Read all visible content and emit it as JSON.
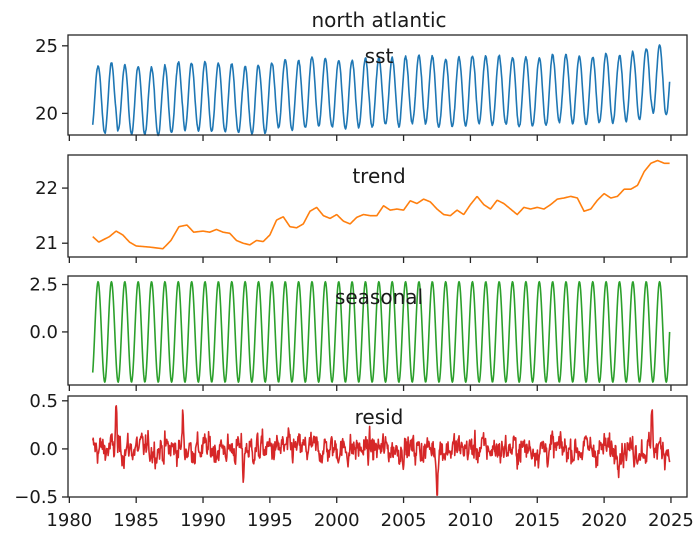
{
  "chart_data": {
    "type": "line",
    "title": "north atlantic",
    "x_ticks": [
      "1980",
      "1985",
      "1990",
      "1995",
      "2000",
      "2005",
      "2010",
      "2015",
      "2020",
      "2025"
    ],
    "xlim": [
      1979.9,
      2026.2
    ],
    "x_start": 1981.75,
    "x_end": 2024.9,
    "panels": [
      {
        "label": "sst",
        "color": "#1f77b4",
        "ylim": [
          18.4,
          25.8
        ],
        "y_ticks": [
          "20",
          "25"
        ],
        "y_tick_values": [
          20,
          25
        ],
        "trend_points": [
          [
            1981.75,
            21.15
          ],
          [
            1985,
            21.1
          ],
          [
            1990,
            21.2
          ],
          [
            1995,
            21.2
          ],
          [
            1998,
            21.55
          ],
          [
            2000,
            21.5
          ],
          [
            2005,
            21.7
          ],
          [
            2010,
            21.8
          ],
          [
            2015,
            21.75
          ],
          [
            2020,
            21.9
          ],
          [
            2022,
            22.1
          ],
          [
            2023.5,
            22.45
          ],
          [
            2024.9,
            22.5
          ]
        ],
        "seasonal_amplitude": 2.45
      },
      {
        "label": "trend",
        "color": "#ff7f0e",
        "ylim": [
          20.75,
          22.6
        ],
        "y_ticks": [
          "21",
          "22"
        ],
        "y_tick_values": [
          21,
          22
        ],
        "values": [
          [
            1981.75,
            21.12
          ],
          [
            1982.2,
            21.02
          ],
          [
            1983.0,
            21.12
          ],
          [
            1983.5,
            21.22
          ],
          [
            1984.0,
            21.15
          ],
          [
            1984.5,
            21.02
          ],
          [
            1985.0,
            20.95
          ],
          [
            1986.0,
            20.93
          ],
          [
            1987.0,
            20.9
          ],
          [
            1987.6,
            21.05
          ],
          [
            1988.2,
            21.3
          ],
          [
            1988.8,
            21.33
          ],
          [
            1989.3,
            21.2
          ],
          [
            1990.0,
            21.22
          ],
          [
            1990.5,
            21.2
          ],
          [
            1991.0,
            21.25
          ],
          [
            1991.5,
            21.2
          ],
          [
            1992.0,
            21.18
          ],
          [
            1992.5,
            21.05
          ],
          [
            1993.0,
            21.0
          ],
          [
            1993.5,
            20.97
          ],
          [
            1994.0,
            21.05
          ],
          [
            1994.5,
            21.03
          ],
          [
            1995.0,
            21.15
          ],
          [
            1995.5,
            21.42
          ],
          [
            1996.0,
            21.48
          ],
          [
            1996.5,
            21.3
          ],
          [
            1997.0,
            21.28
          ],
          [
            1997.5,
            21.35
          ],
          [
            1998.0,
            21.58
          ],
          [
            1998.5,
            21.65
          ],
          [
            1999.0,
            21.5
          ],
          [
            1999.5,
            21.45
          ],
          [
            2000.0,
            21.52
          ],
          [
            2000.5,
            21.4
          ],
          [
            2001.0,
            21.35
          ],
          [
            2001.5,
            21.47
          ],
          [
            2002.0,
            21.52
          ],
          [
            2002.5,
            21.5
          ],
          [
            2003.0,
            21.5
          ],
          [
            2003.5,
            21.68
          ],
          [
            2004.0,
            21.6
          ],
          [
            2004.5,
            21.62
          ],
          [
            2005.0,
            21.6
          ],
          [
            2005.5,
            21.77
          ],
          [
            2006.0,
            21.72
          ],
          [
            2006.5,
            21.8
          ],
          [
            2007.0,
            21.75
          ],
          [
            2007.5,
            21.62
          ],
          [
            2008.0,
            21.52
          ],
          [
            2008.5,
            21.5
          ],
          [
            2009.0,
            21.6
          ],
          [
            2009.5,
            21.52
          ],
          [
            2010.0,
            21.7
          ],
          [
            2010.5,
            21.85
          ],
          [
            2011.0,
            21.7
          ],
          [
            2011.5,
            21.62
          ],
          [
            2012.0,
            21.78
          ],
          [
            2012.5,
            21.72
          ],
          [
            2013.0,
            21.62
          ],
          [
            2013.5,
            21.52
          ],
          [
            2014.0,
            21.65
          ],
          [
            2014.5,
            21.62
          ],
          [
            2015.0,
            21.65
          ],
          [
            2015.5,
            21.62
          ],
          [
            2016.0,
            21.7
          ],
          [
            2016.5,
            21.8
          ],
          [
            2017.0,
            21.82
          ],
          [
            2017.5,
            21.85
          ],
          [
            2018.0,
            21.82
          ],
          [
            2018.5,
            21.58
          ],
          [
            2019.0,
            21.62
          ],
          [
            2019.5,
            21.78
          ],
          [
            2020.0,
            21.9
          ],
          [
            2020.5,
            21.82
          ],
          [
            2021.0,
            21.85
          ],
          [
            2021.5,
            21.98
          ],
          [
            2022.0,
            21.98
          ],
          [
            2022.5,
            22.05
          ],
          [
            2023.0,
            22.3
          ],
          [
            2023.5,
            22.45
          ],
          [
            2024.0,
            22.5
          ],
          [
            2024.5,
            22.45
          ],
          [
            2024.9,
            22.45
          ]
        ]
      },
      {
        "label": "seasonal",
        "color": "#2ca02c",
        "ylim": [
          -2.8,
          2.95
        ],
        "y_ticks": [
          "2.5",
          "0.0"
        ],
        "y_tick_values": [
          2.5,
          0.0
        ],
        "amplitude": 2.65,
        "period_years": 1.0,
        "phase_max": 0.15
      },
      {
        "label": "resid",
        "color": "#d62728",
        "ylim": [
          -0.5,
          0.55
        ],
        "y_ticks": [
          "0.5",
          "0.0",
          "−0.5"
        ],
        "y_tick_values": [
          0.5,
          0.0,
          -0.5
        ],
        "noise_std": 0.11,
        "peaks": [
          [
            1983.5,
            0.47
          ],
          [
            1988.5,
            0.35
          ],
          [
            1993.0,
            -0.3
          ],
          [
            2007.5,
            -0.45
          ],
          [
            2023.6,
            0.47
          ]
        ]
      }
    ]
  }
}
